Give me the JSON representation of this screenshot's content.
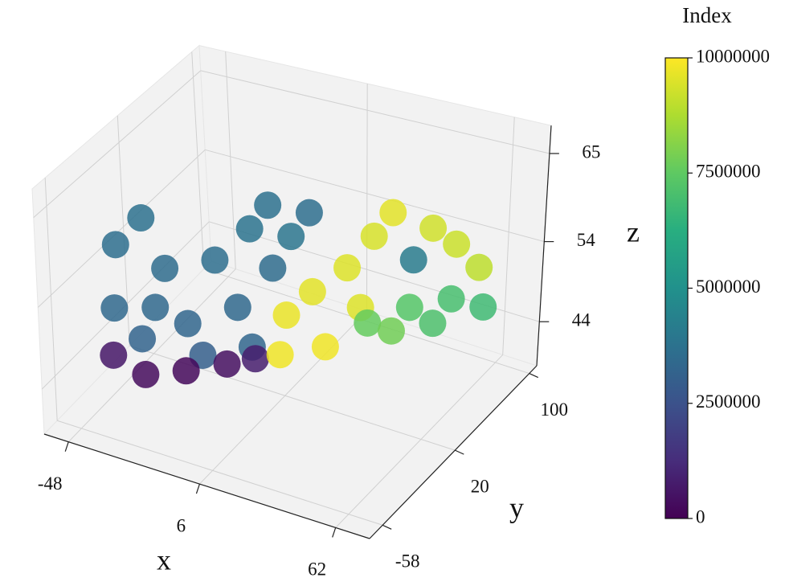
{
  "chart_data": {
    "type": "scatter3d",
    "xlabel": "x",
    "ylabel": "y",
    "zlabel": "z",
    "colorbar_label": "Index",
    "xlim": [
      -58,
      76
    ],
    "ylim": [
      -72,
      108
    ],
    "zlim": [
      38.5,
      68.5
    ],
    "xticks": [
      -48,
      6,
      62
    ],
    "yticks": [
      -58,
      20,
      100
    ],
    "zticks": [
      44,
      54,
      65
    ],
    "clim": [
      0,
      10000000
    ],
    "cticks": [
      0,
      2500000,
      5000000,
      7500000,
      10000000
    ],
    "colormap": [
      "#440154",
      "#472d7b",
      "#3b528b",
      "#2c728e",
      "#21918c",
      "#28ae80",
      "#5ec962",
      "#addc30",
      "#fde725"
    ],
    "pane_color": "#f2f2f2",
    "grid": true,
    "x": [
      -37.7,
      -39,
      -30.3,
      -31.5,
      -24.2,
      -18.3,
      -10,
      -3.9,
      0,
      5.2,
      6.3,
      11.6,
      16.8,
      -14.3,
      0,
      -27.4,
      -40,
      -31,
      -19.3,
      -7.4,
      0.8,
      10,
      8,
      17.5,
      27.4,
      35,
      40.3,
      51.6,
      58.3,
      21.1,
      31.2,
      64.9,
      33.2,
      45.3,
      57.2,
      66.4,
      40.1,
      52,
      46.2
    ],
    "y": [
      -42,
      -42,
      -34.5,
      -33.3,
      -27,
      -19.5,
      -12,
      -4.5,
      -2,
      3,
      5.5,
      10.5,
      15.5,
      -14.5,
      0.5,
      -29.5,
      -42,
      -32,
      -19.5,
      -7,
      1.75,
      10.5,
      9.25,
      18,
      28,
      35.5,
      40.5,
      53,
      60.5,
      23,
      33,
      68,
      35.5,
      48,
      60.5,
      70.5,
      43,
      55.5,
      48
    ],
    "z": [
      60.2,
      52.3,
      63.3,
      48.2,
      56.8,
      49.7,
      57.4,
      51.3,
      61,
      63.8,
      55.9,
      59.7,
      62.5,
      45.6,
      46.2,
      52,
      46.4,
      43.7,
      43.8,
      44.3,
      44.7,
      49.9,
      45,
      52.6,
      55.3,
      59,
      61.8,
      59.5,
      57.3,
      45.6,
      50.2,
      54.2,
      48.2,
      49.8,
      50.5,
      49.2,
      47,
      47.6,
      55.7
    ],
    "c": [
      3600000,
      3400000,
      3700000,
      3200000,
      3500000,
      3300000,
      3600000,
      3400000,
      3800000,
      3700000,
      3500000,
      3900000,
      3600000,
      3000000,
      3300000,
      3400000,
      600000,
      300000,
      200000,
      400000,
      800000,
      9700000,
      9800000,
      9600000,
      9500000,
      9400000,
      9600000,
      9300000,
      9200000,
      9800000,
      9500000,
      9000000,
      7600000,
      7300000,
      7000000,
      6800000,
      7800000,
      7100000,
      4100000
    ]
  }
}
